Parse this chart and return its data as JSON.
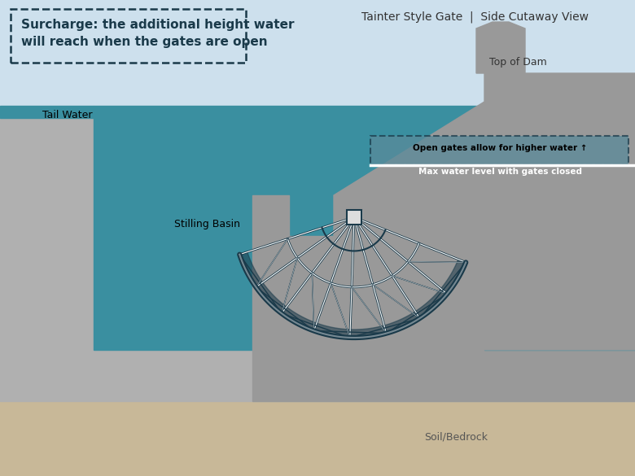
{
  "bg_color": "#cde0ed",
  "title": "Tainter Style Gate  |  Side Cutaway View",
  "title_color": "#333333",
  "title_fontsize": 10,
  "surcharge_label": "Surcharge: the additional height water\nwill reach when the gates are open",
  "surcharge_label_color": "#1a3a4a",
  "surcharge_fontsize": 11,
  "top_dam_label": "Top of Dam",
  "open_gates_label": "Open gates allow for higher water ↑",
  "max_water_label": "Max water level with gates closed",
  "tail_water_label": "Tail Water",
  "stilling_basin_label": "Stilling Basin",
  "soil_label": "Soil/Bedrock",
  "colors": {
    "sky_bg": "#cde0ed",
    "water_deep": "#3a8fa0",
    "dam_gray": "#999999",
    "soil": "#c8b898",
    "gate_dark": "#1a3a4a",
    "surcharge_zone": "#b8d0e0",
    "annotation_bg": "#5a8a9a",
    "concrete": "#b0b0b0"
  }
}
